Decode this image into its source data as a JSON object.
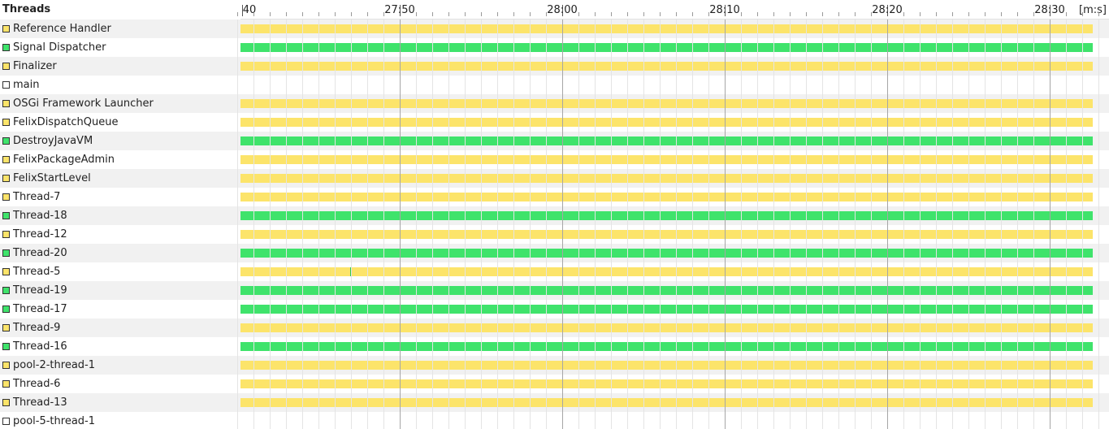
{
  "header": {
    "title": "Threads",
    "unit": "[m:s]"
  },
  "colors": {
    "sleeping": "#fce46a",
    "running": "#3fe36b",
    "finished": "#ffffff"
  },
  "axis": {
    "start_label": "40",
    "ticks": [
      "27:50",
      "28:00",
      "28:10",
      "28:20",
      "28:30"
    ]
  },
  "threads": [
    {
      "name": "Reference Handler",
      "state": "sleeping"
    },
    {
      "name": "Signal Dispatcher",
      "state": "running"
    },
    {
      "name": "Finalizer",
      "state": "sleeping"
    },
    {
      "name": "main",
      "state": "finished"
    },
    {
      "name": "OSGi Framework Launcher",
      "state": "sleeping"
    },
    {
      "name": "FelixDispatchQueue",
      "state": "sleeping"
    },
    {
      "name": "DestroyJavaVM",
      "state": "running"
    },
    {
      "name": "FelixPackageAdmin",
      "state": "sleeping"
    },
    {
      "name": "FelixStartLevel",
      "state": "sleeping"
    },
    {
      "name": "Thread-7",
      "state": "sleeping"
    },
    {
      "name": "Thread-18",
      "state": "running"
    },
    {
      "name": "Thread-12",
      "state": "sleeping"
    },
    {
      "name": "Thread-20",
      "state": "running"
    },
    {
      "name": "Thread-5",
      "state": "sleeping"
    },
    {
      "name": "Thread-19",
      "state": "running"
    },
    {
      "name": "Thread-17",
      "state": "running"
    },
    {
      "name": "Thread-9",
      "state": "sleeping"
    },
    {
      "name": "Thread-16",
      "state": "running"
    },
    {
      "name": "pool-2-thread-1",
      "state": "sleeping"
    },
    {
      "name": "Thread-6",
      "state": "sleeping"
    },
    {
      "name": "Thread-13",
      "state": "sleeping"
    },
    {
      "name": "pool-5-thread-1",
      "state": "finished"
    }
  ]
}
